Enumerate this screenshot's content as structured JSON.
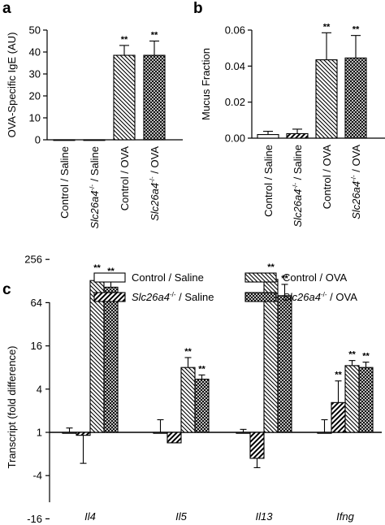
{
  "panels": {
    "a": "a",
    "b": "b",
    "c": "c"
  },
  "colors": {
    "ink": "#000000",
    "background": "#ffffff"
  },
  "chart_data": [
    {
      "type": "bar",
      "panel": "a",
      "ylabel": "OVA-Specific IgE (AU)",
      "xlabel": "",
      "ylim": [
        0,
        50
      ],
      "yticks": [
        "0",
        "10",
        "20",
        "30",
        "40",
        "50"
      ],
      "categories": [
        {
          "label": "Control / Saline",
          "gene": "",
          "sup": "",
          "rest": ""
        },
        {
          "label": "",
          "gene": "Slc26a4",
          "sup": "-/-",
          "rest": " / Saline"
        },
        {
          "label": "Control / OVA",
          "gene": "",
          "sup": "",
          "rest": ""
        },
        {
          "label": "",
          "gene": "Slc26a4",
          "sup": "-/-",
          "rest": " / OVA"
        }
      ],
      "patterns": [
        "open",
        "diag-up",
        "diag-down",
        "cross"
      ],
      "values": [
        0,
        0,
        38.5,
        38.5
      ],
      "errors": [
        0,
        0,
        4.5,
        6.5
      ],
      "annotations": [
        "",
        "",
        "**",
        "**"
      ],
      "grid": false
    },
    {
      "type": "bar",
      "panel": "b",
      "ylabel": "Mucus Fraction",
      "xlabel": "",
      "ylim": [
        0,
        0.06
      ],
      "yticks": [
        "0.00",
        "0.02",
        "0.04",
        "0.06"
      ],
      "categories": [
        {
          "label": "Control / Saline",
          "gene": "",
          "sup": "",
          "rest": ""
        },
        {
          "label": "",
          "gene": "Slc26a4",
          "sup": "-/-",
          "rest": " / Saline"
        },
        {
          "label": "Control / OVA",
          "gene": "",
          "sup": "",
          "rest": ""
        },
        {
          "label": "",
          "gene": "Slc26a4",
          "sup": "-/-",
          "rest": " / OVA"
        }
      ],
      "patterns": [
        "open",
        "diag-up",
        "diag-down",
        "cross"
      ],
      "values": [
        0.002,
        0.0025,
        0.0435,
        0.0445
      ],
      "errors": [
        0.0018,
        0.0025,
        0.015,
        0.0125
      ],
      "annotations": [
        "",
        "",
        "**",
        "**"
      ],
      "grid": false
    },
    {
      "type": "bar",
      "panel": "c",
      "ylabel": "Transcript (fold difference)",
      "xlabel": "",
      "scale": "log2 fold difference",
      "ylim": [
        -16,
        256
      ],
      "yticks": [
        "-16",
        "-4",
        "1",
        "4",
        "16",
        "64",
        "256"
      ],
      "categories": [
        "Il4",
        "Il5",
        "Il13",
        "Ifng"
      ],
      "legend_position": "top",
      "series": [
        {
          "name": "Control / Saline",
          "gene": "",
          "sup": "",
          "rest": "",
          "pattern": "open",
          "values": [
            1,
            1,
            1,
            1
          ],
          "errors_up": [
            1.15,
            1.5,
            1.1,
            1.5
          ],
          "errors_down": [
            1,
            1,
            1,
            1
          ],
          "annotations": [
            "",
            "",
            "",
            ""
          ]
        },
        {
          "name": "",
          "gene": "Slc26a4",
          "sup": "-/-",
          "rest": " / Saline",
          "pattern": "diag-up",
          "values": [
            -1.1,
            -1.4,
            -2.3,
            2.6
          ],
          "errors_up": [
            -1.1,
            -1.4,
            -2.3,
            5.2
          ],
          "errors_down": [
            -2.7,
            -1.4,
            -3.1,
            2.6
          ],
          "annotations": [
            "",
            "",
            "",
            "**"
          ]
        },
        {
          "name": "Control / OVA",
          "gene": "",
          "sup": "",
          "rest": "",
          "pattern": "diag-down",
          "values": [
            130,
            8,
            135,
            8.5
          ],
          "errors_up": [
            160,
            11,
            165,
            10
          ],
          "errors_down": [
            130,
            8,
            135,
            8.5
          ],
          "annotations": [
            "**",
            "**",
            "**",
            "**"
          ]
        },
        {
          "name": "",
          "gene": "Slc26a4",
          "sup": "-/-",
          "rest": " / OVA",
          "pattern": "cross",
          "values": [
            105,
            5.5,
            80,
            8
          ],
          "errors_up": [
            145,
            6.3,
            115,
            9.5
          ],
          "errors_down": [
            105,
            5.5,
            80,
            8
          ],
          "annotations": [
            "**",
            "**",
            "**",
            "**"
          ]
        }
      ],
      "grid": false
    }
  ]
}
